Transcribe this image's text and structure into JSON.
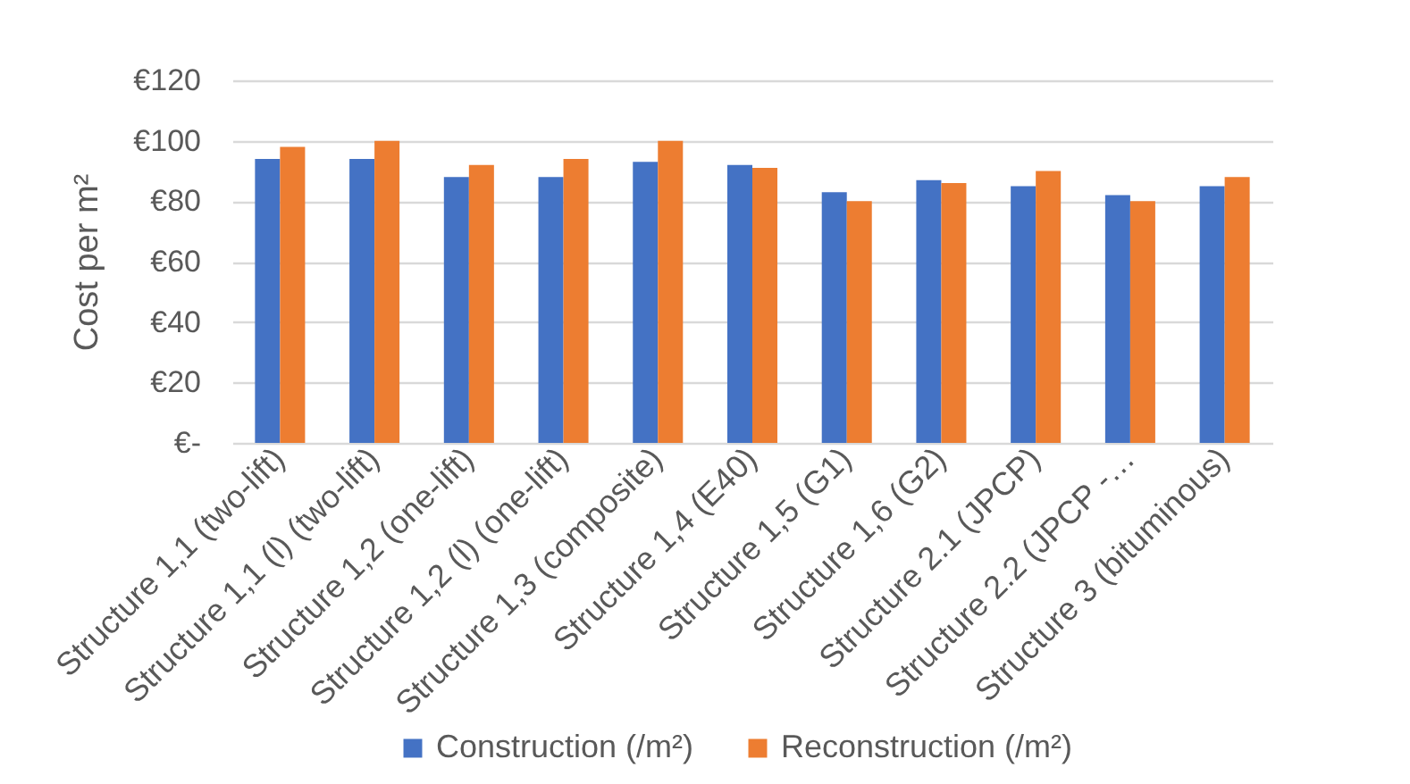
{
  "chart_data": {
    "type": "bar",
    "ylabel": "Cost per m²",
    "categories": [
      "Structure 1,1 (two-lift)",
      "Structure 1,1 (l) (two-lift)",
      "Structure 1,2 (one-lift)",
      "Structure 1,2 (l) (one-lift)",
      "Structure 1,3 (composite)",
      "Structure 1,4 (E40)",
      "Structure 1,5 (G1)",
      "Structure 1,6 (G2)",
      "Structure 2.1 (JPCP)",
      "Structure 2.2 (JPCP -…",
      "Structure 3 (bituminous)"
    ],
    "series": [
      {
        "name": "Construction (/m²)",
        "color": "#4472c4",
        "values": [
          94,
          94,
          88,
          88,
          93,
          92,
          83,
          87,
          85,
          82,
          85
        ]
      },
      {
        "name": "Reconstruction (/m²)",
        "color": "#ed7d31",
        "values": [
          98,
          100,
          92,
          94,
          100,
          91,
          80,
          86,
          90,
          80,
          88
        ]
      }
    ],
    "ylim": [
      0,
      120
    ],
    "yticks": [
      {
        "value": 0,
        "label": "€-"
      },
      {
        "value": 20,
        "label": "€20"
      },
      {
        "value": 40,
        "label": "€40"
      },
      {
        "value": 60,
        "label": "€60"
      },
      {
        "value": 80,
        "label": "€80"
      },
      {
        "value": 100,
        "label": "€100"
      },
      {
        "value": 120,
        "label": "€120"
      }
    ],
    "grid": "y",
    "legend": "bottom"
  }
}
